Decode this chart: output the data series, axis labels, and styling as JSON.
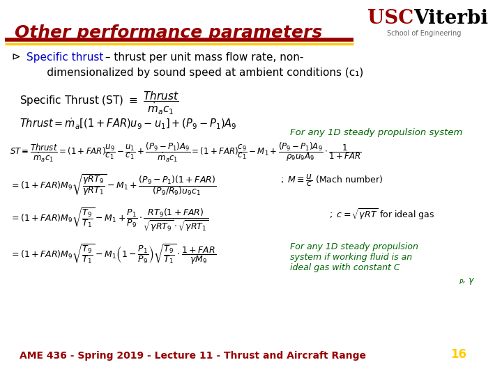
{
  "title": "Other performance parameters",
  "title_color": "#990000",
  "title_italic": true,
  "title_bold": true,
  "header_bar_colors": [
    "#990000",
    "#FFCC00",
    "#990000"
  ],
  "bg_color": "#FFFFFF",
  "usc_text": "USC",
  "viterbi_text": "Viterbi",
  "school_text": "School of Engineering",
  "usc_color": "#990000",
  "viterbi_color": "#000000",
  "school_color": "#666666",
  "bullet_color": "#000080",
  "bullet_text_blue": "Specific thrust",
  "bullet_text_black": " – thrust per unit mass flow rate, non-\n      dimensionalized by sound speed at ambient conditions (c",
  "bullet_subscript": "1",
  "bullet_end": ")",
  "eq1": "Specific Thrust (ST) $\\equiv$ $\\dfrac{Thrust}{\\dot{m}_a c_1}$",
  "eq2": "$Thrust = \\dot{m}_a[(1+FAR)u_9 - u_1] + (P_9 - P_1)A_9$",
  "eq3": "$ST \\equiv \\dfrac{Thrust}{\\dot{m}_a c_1} = (1+FAR)\\dfrac{u_9}{c_1} - \\dfrac{u_1}{c_1} + \\dfrac{(P_9-P_1)A_9}{\\dot{m}_a c_1} = (1+FAR)\\dfrac{c_9}{c_1} - M_1 + \\dfrac{(P_9-P_1)A_9}{\\rho_9 u_9 A_9} \\cdot \\dfrac{1}{1+FAR}$",
  "note1": "For any 1D steady propulsion system",
  "note1_color": "#006600",
  "eq4": "$= (1+FAR)M_9\\sqrt{\\dfrac{\\gamma R T_9}{\\gamma R T_1}} - M_1 + \\dfrac{(P_9-P_1)(1+FAR)}{(P_9/R_9)u_9 c_1}$",
  "eq4b": "$M \\equiv \\dfrac{u}{c}$  (Mach number)",
  "eq5": "$= (1+FAR)M_9\\sqrt{\\dfrac{T_9}{T_1}}\\left(1 - \\dfrac{P_1}{P_9}\\cdot\\dfrac{R T_9(1+FAR)}{\\sqrt{\\gamma R T_9}\\cdot\\sqrt{\\gamma R T_1}}\\right)$",
  "eq5b": "$c = \\sqrt{\\gamma R T}$  for ideal gas",
  "eq6": "$= (1+FAR)M_9\\sqrt{\\dfrac{T_9}{T_1}} - M_1\\left(1 - \\dfrac{P_1}{P_9}\\right)\\sqrt{\\dfrac{T_9}{T_1}} \\cdot \\dfrac{1+FAR}{\\gamma M_9}$",
  "note2_line1": "For any 1D steady propulsion",
  "note2_line2": "system if working fluid is an",
  "note2_line3": "ideal gas with constant C",
  "note2_subscript": "P",
  "note2_end": ", γ",
  "note2_color": "#006600",
  "footer_text": "AME 436 - Spring 2019 - Lecture 11 - Thrust and Aircraft Range",
  "footer_color": "#990000",
  "page_num": "16",
  "page_num_color": "#FFCC00"
}
